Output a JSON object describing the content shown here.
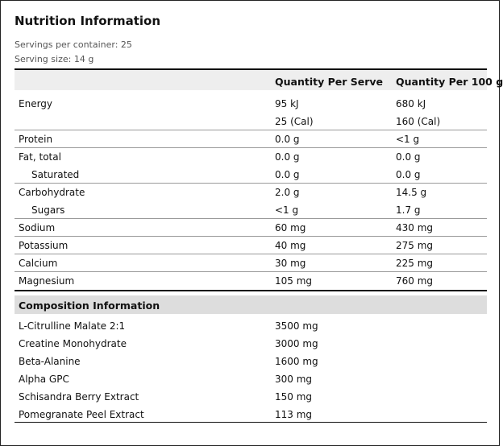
{
  "title": "Nutrition Information",
  "servings_per_container": "Servings per container: 25",
  "serving_size": "Serving size: 14 g",
  "columns": [
    "Quantity Per Serve",
    "Quantity Per 100 g"
  ],
  "nutrition_rows": [
    {
      "label": "Energy",
      "per_serve": "95 kJ",
      "per_100g": "680 kJ"
    },
    {
      "label": "",
      "per_serve": "25 (Cal)",
      "per_100g": "160 (Cal)"
    },
    {
      "label": "Protein",
      "per_serve": "0.0 g",
      "per_100g": "<1 g"
    },
    {
      "label": "Fat, total",
      "per_serve": "0.0 g",
      "per_100g": "0.0 g"
    },
    {
      "label": "Saturated",
      "per_serve": "0.0 g",
      "per_100g": "0.0 g"
    },
    {
      "label": "Carbohydrate",
      "per_serve": "2.0 g",
      "per_100g": "14.5 g"
    },
    {
      "label": "Sugars",
      "per_serve": "<1 g",
      "per_100g": "1.7 g"
    },
    {
      "label": "Sodium",
      "per_serve": "60 mg",
      "per_100g": "430 mg"
    },
    {
      "label": "Potassium",
      "per_serve": "40 mg",
      "per_100g": "275 mg"
    },
    {
      "label": "Calcium",
      "per_serve": "30 mg",
      "per_100g": "225 mg"
    },
    {
      "label": "Magnesium",
      "per_serve": "105 mg",
      "per_100g": "760 mg"
    }
  ],
  "composition_title": "Composition Information",
  "composition_rows": [
    {
      "label": "L-Citrulline Malate 2:1",
      "amount": "3500 mg"
    },
    {
      "label": "Creatine Monohydrate",
      "amount": "3000 mg"
    },
    {
      "label": "Beta-Alanine",
      "amount": "1600 mg"
    },
    {
      "label": "Alpha GPC",
      "amount": "300 mg"
    },
    {
      "label": "Schisandra Berry Extract",
      "amount": "150 mg"
    },
    {
      "label": "Pomegranate Peel Extract",
      "amount": "113 mg"
    }
  ]
}
